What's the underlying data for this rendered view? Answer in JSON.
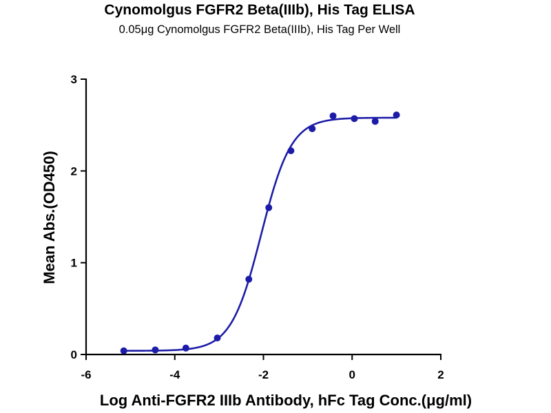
{
  "chart_data": {
    "type": "scatter",
    "title": "Cynomolgus FGFR2 Beta(IIIb), His Tag ELISA",
    "subtitle": "0.05μg Cynomolgus FGFR2 Beta(IIIb), His Tag Per Well",
    "xlabel": "Log Anti-FGFR2 IIIb Antibody, hFc Tag Conc.(μg/ml)",
    "ylabel": "Mean Abs.(OD450)",
    "xlim": [
      -6,
      2
    ],
    "ylim": [
      0,
      3
    ],
    "xticks": [
      -6,
      -4,
      -2,
      0,
      2
    ],
    "yticks": [
      0,
      1,
      2,
      3
    ],
    "xtick_labels": [
      "-6",
      "-4",
      "-2",
      "0",
      "2"
    ],
    "ytick_labels": [
      "0",
      "1",
      "2",
      "3"
    ],
    "grid": false,
    "legend": false,
    "series": [
      {
        "color": "#1c1ca8",
        "points": [
          {
            "x": -5.15,
            "y": 0.04
          },
          {
            "x": -4.44,
            "y": 0.05
          },
          {
            "x": -3.75,
            "y": 0.07
          },
          {
            "x": -3.04,
            "y": 0.18
          },
          {
            "x": -2.33,
            "y": 0.82
          },
          {
            "x": -1.88,
            "y": 1.6
          },
          {
            "x": -1.38,
            "y": 2.22
          },
          {
            "x": -0.9,
            "y": 2.46
          },
          {
            "x": -0.43,
            "y": 2.6
          },
          {
            "x": 0.05,
            "y": 2.57
          },
          {
            "x": 0.52,
            "y": 2.54
          },
          {
            "x": 1.0,
            "y": 2.61
          }
        ],
        "fit_curve": {
          "model": "four-parameter logistic",
          "bottom": 0.04,
          "top": 2.58,
          "log_ec50": -2.05,
          "hill_slope": 1.28,
          "x_range": [
            -5.15,
            1.0
          ]
        }
      }
    ]
  }
}
